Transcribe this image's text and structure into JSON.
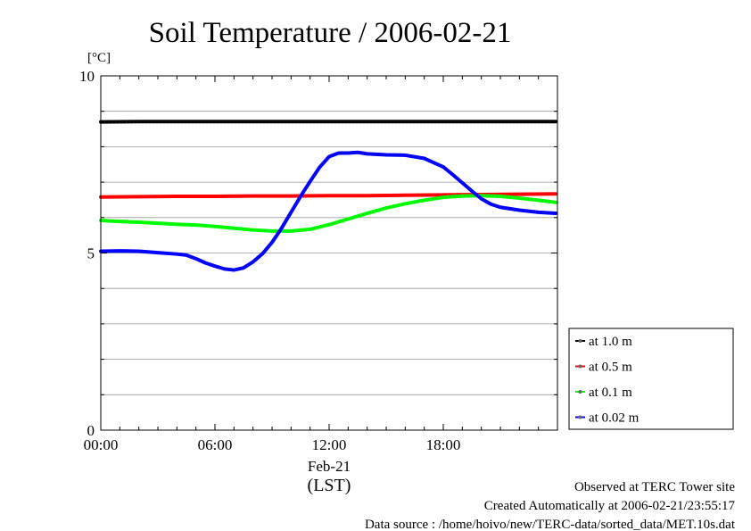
{
  "title": "Soil Temperature / 2006-02-21",
  "y_unit": "[°C]",
  "x_date_label": "Feb-21",
  "x_timezone_label": "(LST)",
  "footer": {
    "observed": "Observed at TERC Tower site",
    "created": "Created Automatically at 2006-02-21/23:55:17",
    "source": "Data source : /home/hoivo/new/TERC-data/sorted_data/MET.10s.dat"
  },
  "chart_data": {
    "type": "line",
    "title": "Soil Temperature / 2006-02-21",
    "xlabel": "(LST)",
    "ylabel": "[°C]",
    "xlim": [
      0,
      24
    ],
    "ylim": [
      0,
      10
    ],
    "x_ticks": [
      {
        "value": 0,
        "label": "00:00"
      },
      {
        "value": 6,
        "label": "06:00"
      },
      {
        "value": 12,
        "label": "12:00"
      },
      {
        "value": 18,
        "label": "18:00"
      }
    ],
    "y_ticks": [
      {
        "value": 0,
        "label": "0"
      },
      {
        "value": 5,
        "label": "5"
      },
      {
        "value": 10,
        "label": "10"
      }
    ],
    "grid": true,
    "legend_position": "right",
    "series": [
      {
        "name": "at 1.0 m",
        "color": "#000000",
        "x": [
          0,
          2,
          4,
          6,
          8,
          10,
          12,
          14,
          16,
          18,
          20,
          22,
          23.9
        ],
        "y": [
          8.7,
          8.71,
          8.71,
          8.71,
          8.71,
          8.71,
          8.71,
          8.71,
          8.71,
          8.71,
          8.71,
          8.71,
          8.71
        ]
      },
      {
        "name": "at 0.5 m",
        "color": "#ff0000",
        "x": [
          0,
          2,
          4,
          6,
          8,
          10,
          12,
          14,
          16,
          18,
          20,
          22,
          23.9
        ],
        "y": [
          6.58,
          6.59,
          6.6,
          6.6,
          6.61,
          6.61,
          6.62,
          6.62,
          6.63,
          6.64,
          6.65,
          6.66,
          6.67
        ]
      },
      {
        "name": "at 0.1 m",
        "color": "#00ff00",
        "x": [
          0,
          1,
          2,
          3,
          4,
          5,
          6,
          7,
          8,
          9,
          10,
          11,
          12,
          13,
          14,
          15,
          16,
          17,
          18,
          19,
          20,
          21,
          22,
          23,
          23.9
        ],
        "y": [
          5.92,
          5.89,
          5.87,
          5.84,
          5.81,
          5.79,
          5.75,
          5.7,
          5.65,
          5.62,
          5.62,
          5.67,
          5.8,
          5.96,
          6.12,
          6.27,
          6.39,
          6.49,
          6.57,
          6.61,
          6.62,
          6.6,
          6.55,
          6.49,
          6.43
        ]
      },
      {
        "name": "at 0.02 m",
        "color": "#0000ff",
        "x": [
          0,
          1,
          2,
          3,
          4,
          4.5,
          5,
          5.5,
          6,
          6.5,
          7,
          7.5,
          8,
          8.5,
          9,
          9.5,
          10,
          10.5,
          11,
          11.5,
          12,
          12.5,
          13,
          13.5,
          14,
          15,
          16,
          17,
          18,
          18.5,
          19,
          19.5,
          20,
          20.5,
          21,
          22,
          23,
          23.9
        ],
        "y": [
          5.05,
          5.06,
          5.05,
          5.01,
          4.97,
          4.94,
          4.84,
          4.72,
          4.63,
          4.55,
          4.52,
          4.58,
          4.75,
          4.98,
          5.3,
          5.7,
          6.15,
          6.6,
          7.02,
          7.42,
          7.72,
          7.82,
          7.82,
          7.84,
          7.8,
          7.77,
          7.76,
          7.67,
          7.43,
          7.21,
          6.98,
          6.75,
          6.53,
          6.38,
          6.29,
          6.21,
          6.15,
          6.12
        ]
      }
    ]
  }
}
